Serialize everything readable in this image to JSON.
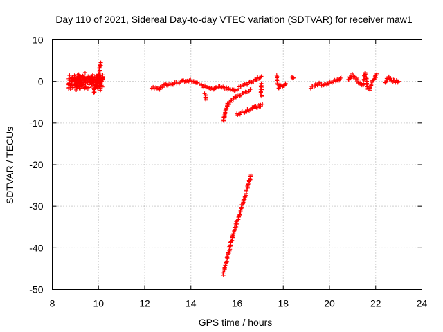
{
  "chart_data": {
    "type": "scatter",
    "title": "Day 110 of 2021, Sidereal Day-to-day VTEC variation (SDTVAR) for receiver maw1",
    "xlabel": "GPS time / hours",
    "ylabel": "SDTVAR / TECUs",
    "xlim": [
      8,
      24
    ],
    "ylim": [
      -50,
      10
    ],
    "xticks": [
      8,
      10,
      12,
      14,
      16,
      18,
      20,
      22,
      24
    ],
    "yticks": [
      10,
      0,
      -10,
      -20,
      -30,
      -40,
      -50
    ],
    "xtick_labels": [
      "8",
      "10",
      "12",
      "14",
      "16",
      "18",
      "20",
      "22",
      "24"
    ],
    "ytick_labels": [
      "10",
      "0",
      "-10",
      "-20",
      "-30",
      "-40",
      "-50"
    ],
    "grid": true,
    "marker": "+",
    "color": "#ff0000",
    "segments": [
      {
        "name": "cluster-morning",
        "x_range": [
          8.7,
          10.2
        ],
        "y_center": 0,
        "y_spread": 2.2
      },
      {
        "name": "rise-10h",
        "points": [
          [
            9.8,
            -2.5
          ],
          [
            9.9,
            -1.0
          ],
          [
            10.0,
            1.5
          ],
          [
            10.05,
            3.0
          ],
          [
            10.1,
            4.5
          ]
        ]
      },
      {
        "name": "midday-band",
        "points": [
          [
            12.3,
            -1.5
          ],
          [
            12.6,
            -1.8
          ],
          [
            12.9,
            -0.8
          ],
          [
            13.2,
            -0.6
          ],
          [
            13.5,
            -0.3
          ],
          [
            13.8,
            0.3
          ],
          [
            14.1,
            0.0
          ],
          [
            14.3,
            -0.6
          ],
          [
            14.5,
            -1.0
          ],
          [
            14.7,
            -1.5
          ],
          [
            14.9,
            -1.8
          ],
          [
            15.1,
            -1.5
          ],
          [
            15.3,
            -1.3
          ],
          [
            15.6,
            -1.8
          ],
          [
            15.9,
            -2.2
          ],
          [
            16.1,
            -1.5
          ],
          [
            16.3,
            -0.8
          ],
          [
            16.5,
            -0.5
          ],
          [
            16.7,
            0.0
          ],
          [
            16.9,
            0.8
          ],
          [
            17.05,
            1.2
          ]
        ]
      },
      {
        "name": "dip-14-6h",
        "points": [
          [
            14.6,
            -3.0
          ],
          [
            14.65,
            -4.5
          ]
        ]
      },
      {
        "name": "drop-branch",
        "points": [
          [
            15.4,
            -9.5
          ],
          [
            15.5,
            -7.0
          ],
          [
            15.6,
            -5.5
          ],
          [
            15.75,
            -4.5
          ],
          [
            15.9,
            -3.8
          ],
          [
            16.1,
            -3.3
          ],
          [
            16.3,
            -2.8
          ],
          [
            16.5,
            -2.3
          ],
          [
            16.6,
            -1.8
          ]
        ]
      },
      {
        "name": "lower-branch",
        "points": [
          [
            16.0,
            -8.0
          ],
          [
            16.2,
            -7.5
          ],
          [
            16.4,
            -7.0
          ],
          [
            16.6,
            -6.6
          ],
          [
            16.8,
            -6.2
          ],
          [
            17.0,
            -5.8
          ],
          [
            17.1,
            -5.5
          ]
        ]
      },
      {
        "name": "late-spikes",
        "points": [
          [
            17.05,
            -3.5
          ],
          [
            17.05,
            -1.8
          ],
          [
            17.05,
            -0.5
          ]
        ]
      },
      {
        "name": "steep-line",
        "points": [
          [
            15.4,
            -46.5
          ],
          [
            15.55,
            -43.0
          ],
          [
            15.7,
            -39.5
          ],
          [
            15.85,
            -36.5
          ],
          [
            16.0,
            -33.5
          ],
          [
            16.15,
            -31.0
          ],
          [
            16.3,
            -28.5
          ],
          [
            16.45,
            -25.5
          ],
          [
            16.6,
            -22.5
          ]
        ]
      },
      {
        "name": "evening-a",
        "points": [
          [
            17.7,
            1.2
          ],
          [
            17.75,
            -0.5
          ],
          [
            17.8,
            -1.5
          ],
          [
            17.9,
            -0.8
          ],
          [
            18.0,
            -1.3
          ],
          [
            18.1,
            -0.5
          ]
        ]
      },
      {
        "name": "evening-b",
        "points": [
          [
            18.35,
            1.3
          ],
          [
            18.4,
            1.0
          ],
          [
            18.45,
            0.8
          ]
        ]
      },
      {
        "name": "evening-c",
        "points": [
          [
            19.2,
            -1.5
          ],
          [
            19.4,
            -0.8
          ],
          [
            19.6,
            -0.5
          ],
          [
            19.8,
            -1.0
          ],
          [
            20.0,
            -0.3
          ],
          [
            20.2,
            0.0
          ],
          [
            20.4,
            0.5
          ],
          [
            20.5,
            1.0
          ]
        ]
      },
      {
        "name": "night-a",
        "points": [
          [
            20.8,
            0.5
          ],
          [
            21.0,
            1.5
          ],
          [
            21.15,
            0.5
          ],
          [
            21.3,
            -0.5
          ],
          [
            21.45,
            -1.0
          ],
          [
            21.55,
            2.2
          ],
          [
            21.65,
            -1.5
          ],
          [
            21.75,
            -1.8
          ],
          [
            21.9,
            0.5
          ],
          [
            22.05,
            1.8
          ]
        ]
      },
      {
        "name": "night-b",
        "points": [
          [
            22.4,
            -0.3
          ],
          [
            22.55,
            1.0
          ],
          [
            22.7,
            0.3
          ],
          [
            22.85,
            0.0
          ],
          [
            23.0,
            0.0
          ]
        ]
      }
    ]
  }
}
